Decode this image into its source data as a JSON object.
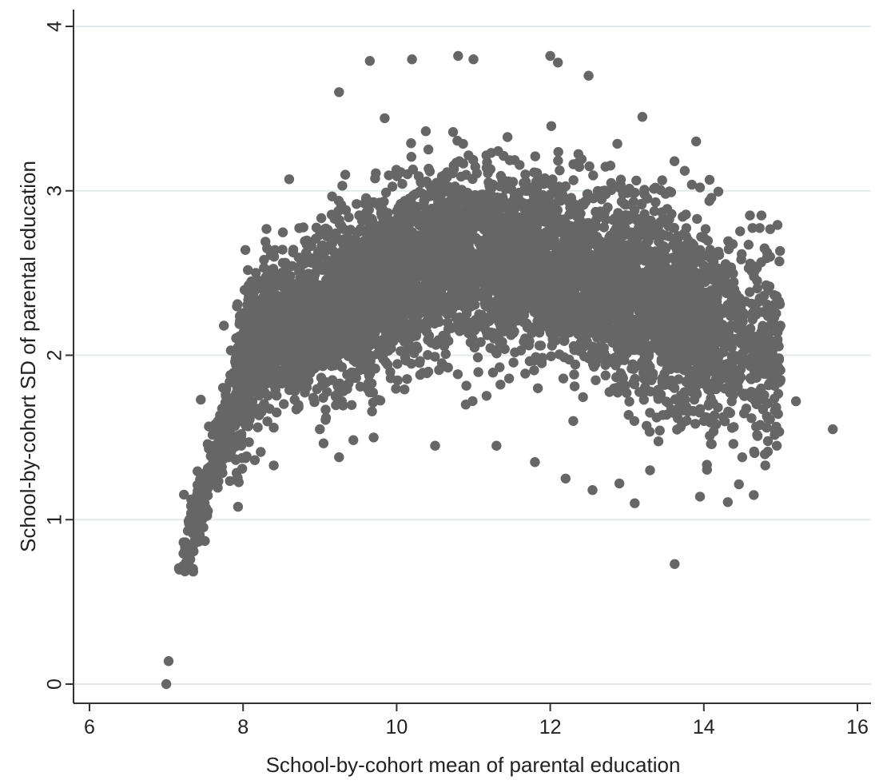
{
  "chart_data": {
    "type": "scatter",
    "title": "",
    "xlabel": "School-by-cohort mean of parental education",
    "ylabel": "School-by-cohort SD of parental education",
    "xlim": [
      6,
      16
    ],
    "ylim": [
      0,
      4
    ],
    "x_ticks": [
      "6",
      "8",
      "10",
      "12",
      "14",
      "16"
    ],
    "y_ticks": [
      "0",
      "1",
      "2",
      "3",
      "4"
    ],
    "grid": "horizontal",
    "legend": "none",
    "marker_color": "#666666",
    "background": "#ffffff",
    "series": [
      {
        "points": [
          [
            7.0,
            0.0
          ],
          [
            7.03,
            0.14
          ],
          [
            13.62,
            0.73
          ],
          [
            15.68,
            1.55
          ],
          [
            15.2,
            1.72
          ],
          [
            14.9,
            2.3
          ],
          [
            14.75,
            2.85
          ],
          [
            14.6,
            2.85
          ],
          [
            13.9,
            3.3
          ],
          [
            13.95,
            3.02
          ],
          [
            12.0,
            3.82
          ],
          [
            12.1,
            3.78
          ],
          [
            11.0,
            3.8
          ],
          [
            10.8,
            3.82
          ],
          [
            10.2,
            3.8
          ],
          [
            9.65,
            3.79
          ],
          [
            12.5,
            3.7
          ],
          [
            13.2,
            3.45
          ],
          [
            9.25,
            3.6
          ],
          [
            14.65,
            1.15
          ],
          [
            13.95,
            1.14
          ],
          [
            13.1,
            1.1
          ],
          [
            12.55,
            1.18
          ],
          [
            12.9,
            1.22
          ],
          [
            9.25,
            1.38
          ],
          [
            9.7,
            1.5
          ],
          [
            10.5,
            1.45
          ],
          [
            11.3,
            1.45
          ],
          [
            14.95,
            1.45
          ],
          [
            14.5,
            1.38
          ],
          [
            14.8,
            1.33
          ],
          [
            13.3,
            1.3
          ],
          [
            14.9,
            1.93
          ],
          [
            14.6,
            2.05
          ],
          [
            8.6,
            3.07
          ],
          [
            7.75,
            2.18
          ],
          [
            7.45,
            1.73
          ],
          [
            7.22,
            0.72
          ],
          [
            7.25,
            0.8
          ],
          [
            7.35,
            0.92
          ],
          [
            7.5,
            1.1
          ],
          [
            7.65,
            1.3
          ],
          [
            11.8,
            1.35
          ],
          [
            12.2,
            1.25
          ],
          [
            8.4,
            1.33
          ],
          [
            9.0,
            1.55
          ],
          [
            14.2,
            2.4
          ],
          [
            14.4,
            2.1
          ],
          [
            10.9,
            1.7
          ],
          [
            12.3,
            1.6
          ]
        ]
      }
    ]
  }
}
